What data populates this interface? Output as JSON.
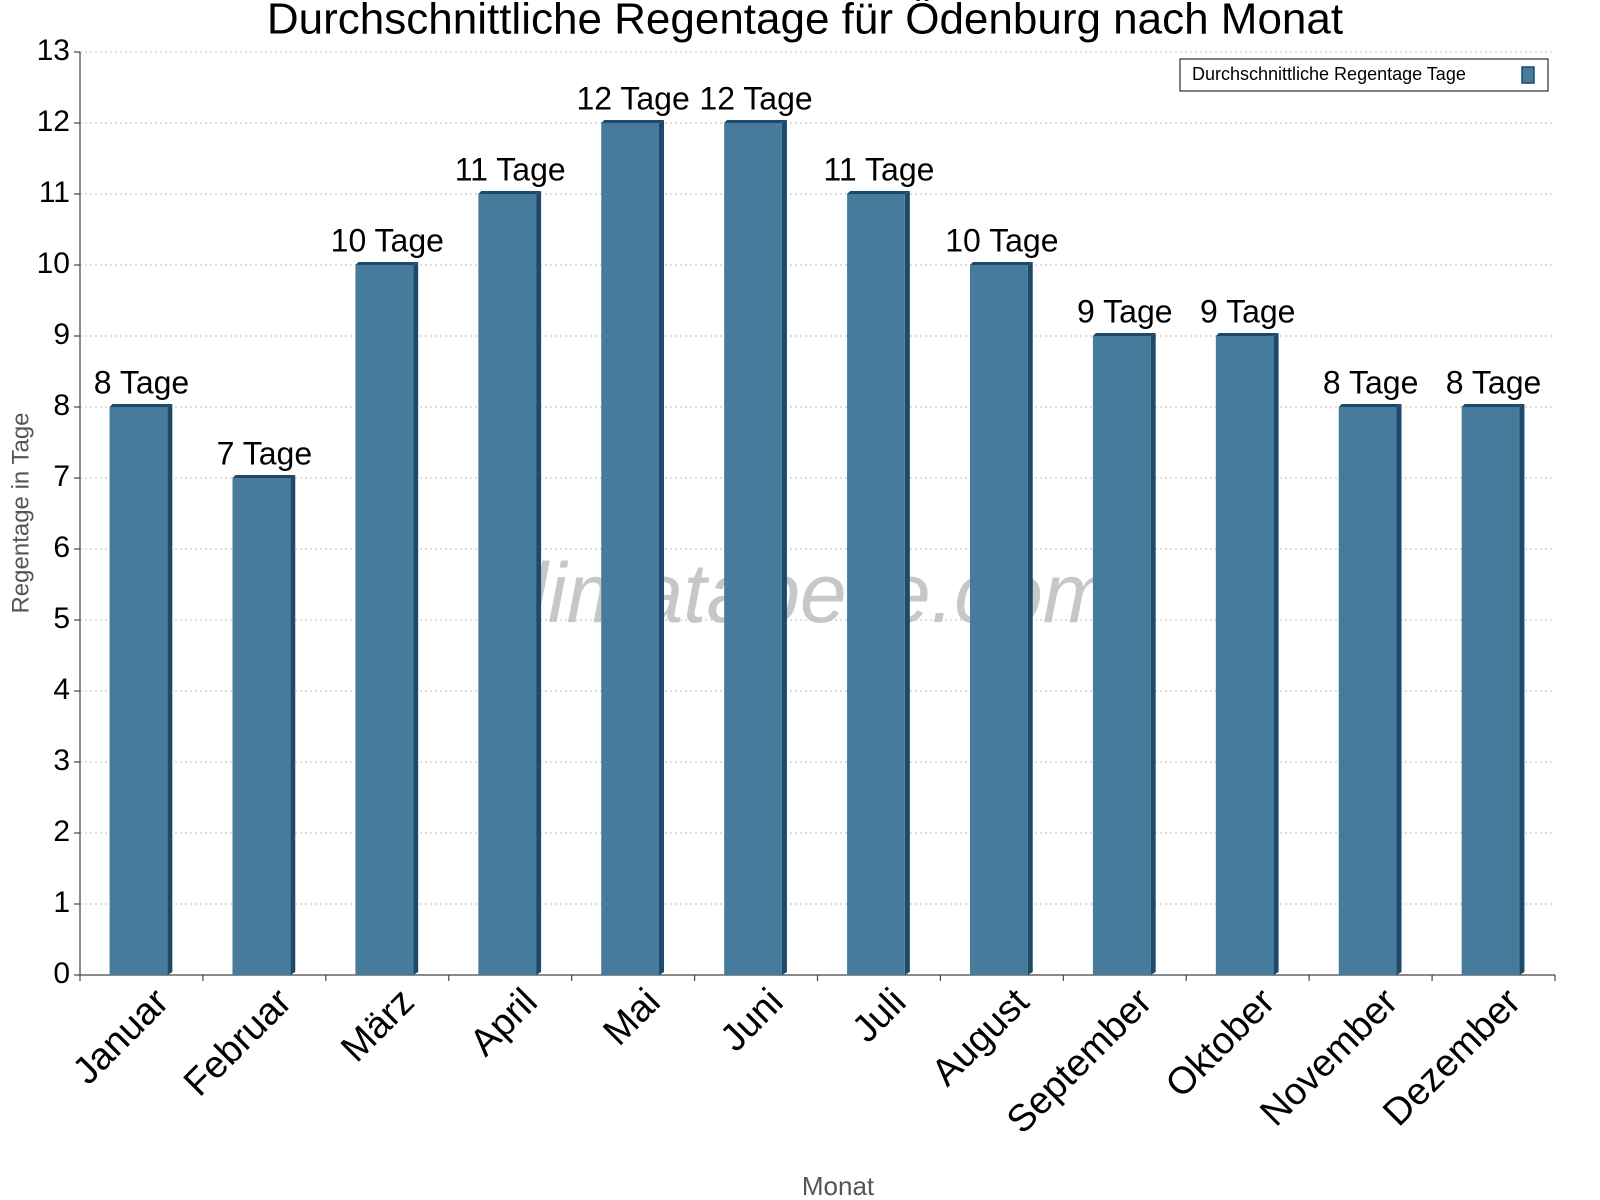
{
  "chart_data": {
    "type": "bar",
    "title": "Durchschnittliche Regentage für Ödenburg nach Monat",
    "x_label": "Monat",
    "y_label": "Regentage in Tage",
    "watermark": "klimatabelle.com",
    "categories": [
      "Januar",
      "Februar",
      "März",
      "April",
      "Mai",
      "Juni",
      "Juli",
      "August",
      "September",
      "Oktober",
      "November",
      "Dezember"
    ],
    "series": [
      {
        "name": "Durchschnittliche Regentage Tage",
        "color": "#467b9c",
        "values": [
          8,
          7,
          10,
          11,
          12,
          12,
          11,
          10,
          9,
          9,
          8,
          8
        ],
        "value_labels": [
          "8 Tage",
          "7 Tage",
          "10 Tage",
          "11 Tage",
          "12 Tage",
          "12 Tage",
          "11 Tage",
          "10 Tage",
          "9 Tage",
          "9 Tage",
          "8 Tage",
          "8 Tage"
        ]
      }
    ],
    "ylim": [
      0,
      13
    ],
    "yticks": [
      0,
      1,
      2,
      3,
      4,
      5,
      6,
      7,
      8,
      9,
      10,
      11,
      12,
      13
    ],
    "grid": true,
    "legend": "upper right"
  }
}
